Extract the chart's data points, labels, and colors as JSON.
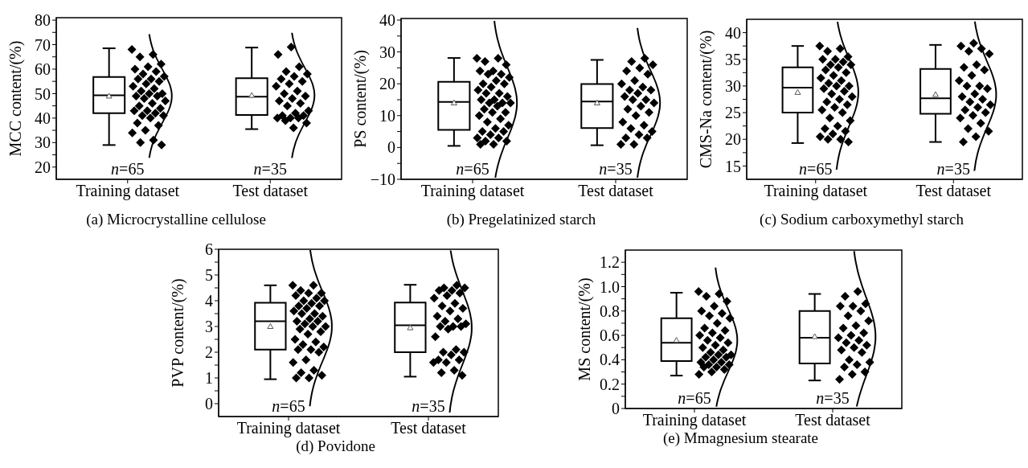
{
  "chart_data": [
    {
      "type": "box",
      "title": "(a) Microcrystalline cellulose",
      "ylabel": "MCC content/(%)",
      "categories": [
        "Training dataset",
        "Test dataset"
      ],
      "ylim": [
        15,
        81
      ],
      "yticks": [
        20,
        {
          "value": 25,
          "label": null
        },
        30,
        {
          "value": 35,
          "label": null
        },
        40,
        {
          "value": 45,
          "label": null
        },
        50,
        {
          "value": 55,
          "label": null
        },
        60,
        {
          "value": 65,
          "label": null
        },
        70,
        {
          "value": 75,
          "label": null
        },
        80
      ],
      "annotations": [
        "n=65",
        "n=35"
      ],
      "series": [
        {
          "type": "box",
          "color": "#000000",
          "boxes": [
            {
              "low": 29,
              "q1": 42,
              "median": 49.3,
              "q3": 56.8,
              "high": 68.5,
              "mean": 49
            },
            {
              "low": 35.5,
              "q1": 41.3,
              "median": 48.7,
              "q3": 56.3,
              "high": 68.8,
              "mean": 49.3
            }
          ]
        },
        {
          "type": "scatter",
          "marker": "diamond",
          "color": "#000000",
          "x": [
            "Training dataset",
            "Training dataset",
            "Training dataset",
            "Training dataset",
            "Training dataset",
            "Training dataset",
            "Training dataset",
            "Training dataset",
            "Training dataset",
            "Training dataset",
            "Training dataset",
            "Training dataset",
            "Training dataset",
            "Training dataset",
            "Training dataset",
            "Training dataset",
            "Training dataset",
            "Training dataset",
            "Training dataset",
            "Training dataset",
            "Training dataset",
            "Training dataset",
            "Training dataset",
            "Training dataset",
            "Training dataset",
            "Training dataset",
            "Training dataset",
            "Training dataset",
            "Training dataset",
            "Training dataset",
            "Training dataset",
            "Training dataset",
            "Training dataset",
            "Training dataset",
            "Training dataset",
            "Training dataset",
            "Training dataset",
            "Training dataset",
            "Test dataset",
            "Test dataset",
            "Test dataset",
            "Test dataset",
            "Test dataset",
            "Test dataset",
            "Test dataset",
            "Test dataset",
            "Test dataset",
            "Test dataset",
            "Test dataset",
            "Test dataset",
            "Test dataset",
            "Test dataset",
            "Test dataset",
            "Test dataset",
            "Test dataset",
            "Test dataset",
            "Test dataset",
            "Test dataset",
            "Test dataset",
            "Test dataset",
            "Test dataset",
            "Test dataset",
            "Test dataset",
            "Test dataset",
            "Test dataset"
          ],
          "values": [
            68,
            66,
            65,
            62,
            61,
            60,
            59,
            58,
            57,
            56,
            56,
            55,
            54,
            53,
            52,
            51,
            50,
            50,
            49,
            49,
            48,
            47,
            46,
            45,
            44,
            43,
            43,
            42,
            41,
            41,
            40,
            38,
            37,
            35,
            34,
            31,
            30,
            29,
            69,
            66,
            61,
            59,
            58,
            57,
            56,
            55,
            54,
            53,
            51,
            50,
            49,
            48,
            47,
            46,
            45,
            43,
            42,
            41,
            41,
            40,
            40,
            40,
            39,
            38,
            36
          ]
        }
      ]
    },
    {
      "type": "box",
      "title": "(b) Pregelatinized starch",
      "ylabel": "PS content/(%)",
      "categories": [
        "Training dataset",
        "Test dataset"
      ],
      "ylim": [
        -10,
        40.5
      ],
      "yticks": [
        {
          "value": -10,
          "label": "−10"
        },
        {
          "value": -5,
          "label": null
        },
        0,
        {
          "value": 5,
          "label": null
        },
        10,
        {
          "value": 15,
          "label": null
        },
        20,
        {
          "value": 25,
          "label": null
        },
        30,
        {
          "value": 35,
          "label": null
        },
        40
      ],
      "annotations": [
        "n=65",
        "n=35"
      ],
      "series": [
        {
          "type": "box",
          "color": "#000000",
          "boxes": [
            {
              "low": 0.5,
              "q1": 5.5,
              "median": 14.3,
              "q3": 20.6,
              "high": 28.1,
              "mean": 14
            },
            {
              "low": 0.7,
              "q1": 6.1,
              "median": 14.4,
              "q3": 19.9,
              "high": 27.5,
              "mean": 14
            }
          ]
        },
        {
          "type": "scatter",
          "marker": "diamond",
          "color": "#000000",
          "x": [
            "Training dataset",
            "Training dataset",
            "Training dataset",
            "Training dataset",
            "Training dataset",
            "Training dataset",
            "Training dataset",
            "Training dataset",
            "Training dataset",
            "Training dataset",
            "Training dataset",
            "Training dataset",
            "Training dataset",
            "Training dataset",
            "Training dataset",
            "Training dataset",
            "Training dataset",
            "Training dataset",
            "Training dataset",
            "Training dataset",
            "Training dataset",
            "Training dataset",
            "Training dataset",
            "Training dataset",
            "Training dataset",
            "Training dataset",
            "Training dataset",
            "Training dataset",
            "Training dataset",
            "Training dataset",
            "Training dataset",
            "Training dataset",
            "Training dataset",
            "Training dataset",
            "Training dataset",
            "Training dataset",
            "Training dataset",
            "Training dataset",
            "Training dataset",
            "Training dataset",
            "Test dataset",
            "Test dataset",
            "Test dataset",
            "Test dataset",
            "Test dataset",
            "Test dataset",
            "Test dataset",
            "Test dataset",
            "Test dataset",
            "Test dataset",
            "Test dataset",
            "Test dataset",
            "Test dataset",
            "Test dataset",
            "Test dataset",
            "Test dataset",
            "Test dataset",
            "Test dataset",
            "Test dataset",
            "Test dataset",
            "Test dataset",
            "Test dataset",
            "Test dataset",
            "Test dataset",
            "Test dataset",
            "Test dataset",
            "Test dataset",
            "Test dataset",
            "Test dataset"
          ],
          "values": [
            28,
            28,
            27,
            26,
            24,
            24,
            23,
            23,
            22,
            21,
            20,
            20,
            19,
            18,
            17,
            17,
            16,
            15,
            15,
            14,
            14,
            14,
            13,
            12,
            11,
            11,
            10,
            9,
            8,
            7,
            6,
            5,
            5,
            4,
            3,
            3,
            2,
            2,
            1,
            1,
            28,
            27,
            26,
            25,
            24,
            23,
            21,
            20,
            19,
            18,
            18,
            17,
            16,
            15,
            15,
            14,
            13,
            12,
            11,
            10,
            8,
            7,
            6,
            5,
            4,
            3,
            3,
            1,
            1
          ]
        }
      ]
    },
    {
      "type": "box",
      "title": "(c) Sodium carboxymethyl starch",
      "ylabel": "CMS-Na content/(%)",
      "categories": [
        "Training dataset",
        "Test dataset"
      ],
      "ylim": [
        12.5,
        42.5
      ],
      "yticks": [
        15,
        {
          "value": 17.5,
          "label": null
        },
        20,
        {
          "value": 22.5,
          "label": null
        },
        25,
        {
          "value": 27.5,
          "label": null
        },
        30,
        {
          "value": 32.5,
          "label": null
        },
        35,
        {
          "value": 37.5,
          "label": null
        },
        40
      ],
      "annotations": [
        "n=65",
        "n=35"
      ],
      "series": [
        {
          "type": "box",
          "color": "#000000",
          "boxes": [
            {
              "low": 19.3,
              "q1": 25,
              "median": 29.7,
              "q3": 33.5,
              "high": 37.5,
              "mean": 28.8
            },
            {
              "low": 19.5,
              "q1": 24.8,
              "median": 27.7,
              "q3": 33.2,
              "high": 37.7,
              "mean": 28.4
            }
          ]
        },
        {
          "type": "scatter",
          "marker": "diamond",
          "color": "#000000",
          "x": [
            "Training dataset",
            "Training dataset",
            "Training dataset",
            "Training dataset",
            "Training dataset",
            "Training dataset",
            "Training dataset",
            "Training dataset",
            "Training dataset",
            "Training dataset",
            "Training dataset",
            "Training dataset",
            "Training dataset",
            "Training dataset",
            "Training dataset",
            "Training dataset",
            "Training dataset",
            "Training dataset",
            "Training dataset",
            "Training dataset",
            "Training dataset",
            "Training dataset",
            "Training dataset",
            "Training dataset",
            "Training dataset",
            "Training dataset",
            "Training dataset",
            "Training dataset",
            "Training dataset",
            "Training dataset",
            "Training dataset",
            "Training dataset",
            "Training dataset",
            "Training dataset",
            "Training dataset",
            "Training dataset",
            "Training dataset",
            "Training dataset",
            "Test dataset",
            "Test dataset",
            "Test dataset",
            "Test dataset",
            "Test dataset",
            "Test dataset",
            "Test dataset",
            "Test dataset",
            "Test dataset",
            "Test dataset",
            "Test dataset",
            "Test dataset",
            "Test dataset",
            "Test dataset",
            "Test dataset",
            "Test dataset",
            "Test dataset",
            "Test dataset",
            "Test dataset",
            "Test dataset",
            "Test dataset",
            "Test dataset",
            "Test dataset",
            "Test dataset",
            "Test dataset",
            "Test dataset",
            "Test dataset",
            "Test dataset"
          ],
          "values": [
            37.5,
            37,
            36.5,
            35.5,
            35,
            35,
            34.5,
            34,
            34,
            33.5,
            33,
            32.5,
            32,
            31.5,
            31,
            30.5,
            30,
            30,
            29.5,
            29,
            28.5,
            28,
            27.5,
            27,
            26.5,
            26,
            25.5,
            25,
            24,
            23.5,
            22.5,
            22,
            21.5,
            21,
            20.5,
            20,
            20,
            19.5,
            38,
            37.5,
            37,
            36.5,
            36,
            34,
            33.5,
            33,
            32,
            31,
            30,
            30,
            29.5,
            28.5,
            28,
            27.5,
            27,
            26.5,
            26,
            25.5,
            25,
            24.5,
            24,
            23,
            22,
            21.5,
            20.5,
            19.5
          ]
        }
      ]
    },
    {
      "type": "box",
      "title": "(d) Povidone",
      "ylabel": "PVP content/(%)",
      "categories": [
        "Training dataset",
        "Test dataset"
      ],
      "ylim": [
        -0.5,
        6
      ],
      "yticks": [
        0,
        {
          "value": 0.5,
          "label": null
        },
        1,
        {
          "value": 1.5,
          "label": null
        },
        2,
        {
          "value": 2.5,
          "label": null
        },
        3,
        {
          "value": 3.5,
          "label": null
        },
        4,
        {
          "value": 4.5,
          "label": null
        },
        5,
        {
          "value": 5.5,
          "label": null
        },
        6
      ],
      "annotations": [
        "n=65",
        "n=35"
      ],
      "series": [
        {
          "type": "box",
          "color": "#000000",
          "boxes": [
            {
              "low": 0.95,
              "q1": 2.1,
              "median": 3.2,
              "q3": 3.92,
              "high": 4.6,
              "mean": 3
            },
            {
              "low": 1.05,
              "q1": 2,
              "median": 3.05,
              "q3": 3.93,
              "high": 4.62,
              "mean": 2.95
            }
          ]
        },
        {
          "type": "scatter",
          "marker": "diamond",
          "color": "#000000",
          "x": [
            "Training dataset",
            "Training dataset",
            "Training dataset",
            "Training dataset",
            "Training dataset",
            "Training dataset",
            "Training dataset",
            "Training dataset",
            "Training dataset",
            "Training dataset",
            "Training dataset",
            "Training dataset",
            "Training dataset",
            "Training dataset",
            "Training dataset",
            "Training dataset",
            "Training dataset",
            "Training dataset",
            "Training dataset",
            "Training dataset",
            "Training dataset",
            "Training dataset",
            "Training dataset",
            "Training dataset",
            "Training dataset",
            "Training dataset",
            "Training dataset",
            "Training dataset",
            "Training dataset",
            "Training dataset",
            "Training dataset",
            "Training dataset",
            "Training dataset",
            "Training dataset",
            "Training dataset",
            "Training dataset",
            "Training dataset",
            "Training dataset",
            "Training dataset",
            "Training dataset",
            "Test dataset",
            "Test dataset",
            "Test dataset",
            "Test dataset",
            "Test dataset",
            "Test dataset",
            "Test dataset",
            "Test dataset",
            "Test dataset",
            "Test dataset",
            "Test dataset",
            "Test dataset",
            "Test dataset",
            "Test dataset",
            "Test dataset",
            "Test dataset",
            "Test dataset",
            "Test dataset",
            "Test dataset",
            "Test dataset",
            "Test dataset",
            "Test dataset",
            "Test dataset",
            "Test dataset",
            "Test dataset",
            "Test dataset",
            "Test dataset",
            "Test dataset",
            "Test dataset",
            "Test dataset",
            "Test dataset",
            "Test dataset"
          ],
          "values": [
            4.6,
            4.6,
            4.4,
            4.3,
            4.3,
            4.2,
            4.1,
            4,
            4,
            3.9,
            3.8,
            3.8,
            3.7,
            3.6,
            3.5,
            3.5,
            3.4,
            3.3,
            3.2,
            3.2,
            3.1,
            3,
            3,
            2.9,
            2.8,
            2.7,
            2.5,
            2.4,
            2.3,
            2.2,
            2.1,
            2.1,
            2,
            1.7,
            1.6,
            1.3,
            1.2,
            1.1,
            1,
            1,
            4.6,
            4.5,
            4.5,
            4.4,
            4.4,
            4.3,
            4.2,
            4.1,
            3.9,
            3.8,
            3.7,
            3.6,
            3.4,
            3.3,
            3.2,
            3.1,
            3,
            3,
            3,
            2.9,
            2.6,
            2.1,
            2,
            2,
            1.9,
            1.7,
            1.7,
            1.6,
            1.6,
            1.3,
            1.2,
            1.1
          ]
        }
      ]
    },
    {
      "type": "box",
      "title": "(e) Mmagnesium stearate",
      "ylabel": "MS content/(%)",
      "categories": [
        "Training dataset",
        "Test dataset"
      ],
      "ylim": [
        0,
        1.3
      ],
      "yticks": [
        0,
        {
          "value": 0.1,
          "label": null
        },
        0.2,
        {
          "value": 0.3,
          "label": null
        },
        0.4,
        {
          "value": 0.5,
          "label": null
        },
        0.6,
        {
          "value": 0.7,
          "label": null
        },
        0.8,
        {
          "value": 0.9,
          "label": null
        },
        {
          "value": 1,
          "label": "1.0"
        },
        {
          "value": 1.1,
          "label": null
        },
        1.2
      ],
      "annotations": [
        "n=65",
        "n=35"
      ],
      "series": [
        {
          "type": "box",
          "color": "#000000",
          "boxes": [
            {
              "low": 0.27,
              "q1": 0.39,
              "median": 0.54,
              "q3": 0.74,
              "high": 0.95,
              "mean": 0.56
            },
            {
              "low": 0.23,
              "q1": 0.37,
              "median": 0.58,
              "q3": 0.8,
              "high": 0.94,
              "mean": 0.59
            }
          ]
        },
        {
          "type": "scatter",
          "marker": "diamond",
          "color": "#000000",
          "x": [
            "Training dataset",
            "Training dataset",
            "Training dataset",
            "Training dataset",
            "Training dataset",
            "Training dataset",
            "Training dataset",
            "Training dataset",
            "Training dataset",
            "Training dataset",
            "Training dataset",
            "Training dataset",
            "Training dataset",
            "Training dataset",
            "Training dataset",
            "Training dataset",
            "Training dataset",
            "Training dataset",
            "Training dataset",
            "Training dataset",
            "Training dataset",
            "Training dataset",
            "Training dataset",
            "Training dataset",
            "Training dataset",
            "Training dataset",
            "Training dataset",
            "Training dataset",
            "Training dataset",
            "Training dataset",
            "Training dataset",
            "Training dataset",
            "Training dataset",
            "Training dataset",
            "Training dataset",
            "Test dataset",
            "Test dataset",
            "Test dataset",
            "Test dataset",
            "Test dataset",
            "Test dataset",
            "Test dataset",
            "Test dataset",
            "Test dataset",
            "Test dataset",
            "Test dataset",
            "Test dataset",
            "Test dataset",
            "Test dataset",
            "Test dataset",
            "Test dataset",
            "Test dataset",
            "Test dataset",
            "Test dataset",
            "Test dataset",
            "Test dataset",
            "Test dataset",
            "Test dataset",
            "Test dataset",
            "Test dataset",
            "Test dataset"
          ],
          "values": [
            0.96,
            0.94,
            0.92,
            0.88,
            0.84,
            0.8,
            0.78,
            0.76,
            0.74,
            0.7,
            0.66,
            0.64,
            0.62,
            0.6,
            0.58,
            0.56,
            0.54,
            0.52,
            0.5,
            0.48,
            0.46,
            0.44,
            0.44,
            0.42,
            0.42,
            0.4,
            0.38,
            0.38,
            0.36,
            0.36,
            0.34,
            0.34,
            0.32,
            0.3,
            0.28,
            0.96,
            0.92,
            0.86,
            0.84,
            0.84,
            0.8,
            0.76,
            0.72,
            0.68,
            0.66,
            0.62,
            0.6,
            0.58,
            0.56,
            0.54,
            0.52,
            0.5,
            0.48,
            0.46,
            0.4,
            0.38,
            0.36,
            0.34,
            0.3,
            0.28,
            0.24
          ]
        }
      ]
    }
  ]
}
